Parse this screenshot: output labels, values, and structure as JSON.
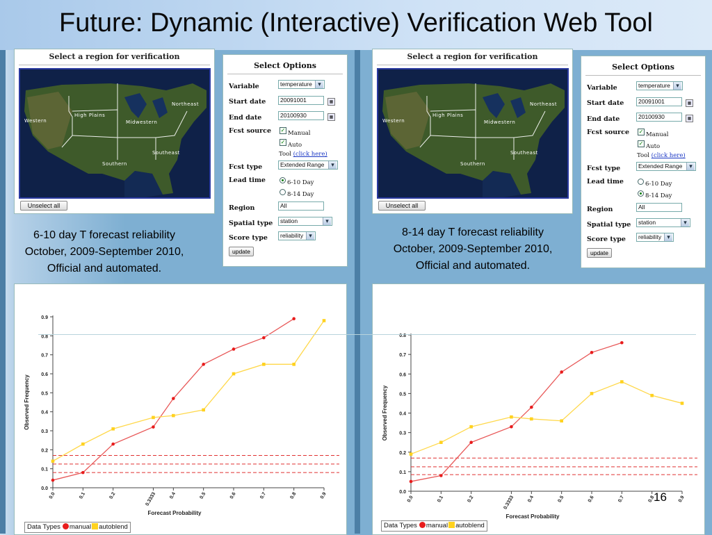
{
  "slide": {
    "title": "Future: Dynamic (Interactive) Verification Web Tool",
    "page_number": "16"
  },
  "panels": [
    {
      "map": {
        "title": "Select a region for verification",
        "regions": [
          "Western",
          "High Plains",
          "Midwestern",
          "Northeast",
          "Southeast",
          "Southern"
        ],
        "unselect_label": "Unselect all"
      },
      "options": {
        "title": "Select Options",
        "variable": {
          "label": "Variable",
          "value": "temperature"
        },
        "start_date": {
          "label": "Start date",
          "value": "20091001"
        },
        "end_date": {
          "label": "End date",
          "value": "20100930"
        },
        "fcst_source": {
          "label": "Fcst source",
          "manual": "Manual",
          "auto": "Auto",
          "tool_prefix": "Tool ",
          "tool_link": "(click here)"
        },
        "fcst_type": {
          "label": "Fcst type",
          "value": "Extended Range"
        },
        "lead_time": {
          "label": "Lead time",
          "option1": "6-10 Day",
          "option2": "8-14 Day",
          "selected": 1
        },
        "region": {
          "label": "Region",
          "value": "All"
        },
        "spatial_type": {
          "label": "Spatial type",
          "value": "station"
        },
        "score_type": {
          "label": "Score type",
          "value": "reliability"
        },
        "update_label": "update"
      },
      "caption": [
        "6-10 day T forecast reliability",
        "October, 2009-September 2010,",
        "Official and automated."
      ],
      "legend": {
        "prefix": "Data Types",
        "manual": "manual",
        "autoblend": "autoblend"
      }
    },
    {
      "map": {
        "title": "Select a region for verification",
        "regions": [
          "Western",
          "High Plains",
          "Midwestern",
          "Northeast",
          "Southeast",
          "Southern"
        ],
        "unselect_label": "Unselect all"
      },
      "options": {
        "title": "Select Options",
        "variable": {
          "label": "Variable",
          "value": "temperature"
        },
        "start_date": {
          "label": "Start date",
          "value": "20091001"
        },
        "end_date": {
          "label": "End date",
          "value": "20100930"
        },
        "fcst_source": {
          "label": "Fcst source",
          "manual": "Manual",
          "auto": "Auto",
          "tool_prefix": "Tool ",
          "tool_link": "(click here)"
        },
        "fcst_type": {
          "label": "Fcst type",
          "value": "Extended Range"
        },
        "lead_time": {
          "label": "Lead time",
          "option1": "6-10 Day",
          "option2": "8-14 Day",
          "selected": 2
        },
        "region": {
          "label": "Region",
          "value": "All"
        },
        "spatial_type": {
          "label": "Spatial type",
          "value": "station"
        },
        "score_type": {
          "label": "Score type",
          "value": "reliability"
        },
        "update_label": "update"
      },
      "caption": [
        "8-14 day T forecast reliability",
        "October, 2009-September 2010,",
        "Official and automated."
      ],
      "legend": {
        "prefix": "Data Types",
        "manual": "manual",
        "autoblend": "autoblend"
      }
    }
  ],
  "colors": {
    "manual": "#e81c1c",
    "autoblend": "#ffd21f",
    "manual_line": "#e85858",
    "autoblend_line": "#ffd84a"
  },
  "chart_data": [
    {
      "type": "line",
      "xlabel": "Forecast Probability",
      "ylabel": "Observed Frequency",
      "x_ticks": [
        "0.0",
        "0.1",
        "0.2",
        "0.3333",
        "0.4",
        "0.5",
        "0.6",
        "0.7",
        "0.8",
        "0.9"
      ],
      "y_ticks": [
        "0.0",
        "0.1",
        "0.2",
        "0.3",
        "0.4",
        "0.5",
        "0.6",
        "0.7",
        "0.8",
        "0.9"
      ],
      "xlim": [
        0,
        0.9
      ],
      "ylim": [
        0,
        0.9
      ],
      "climatology_lines": [
        0.08,
        0.125,
        0.17
      ],
      "series": [
        {
          "name": "manual",
          "x": [
            0.0,
            0.1,
            0.2,
            0.3333,
            0.4,
            0.5,
            0.6,
            0.7,
            0.8
          ],
          "y": [
            0.04,
            0.08,
            0.23,
            0.32,
            0.47,
            0.65,
            0.73,
            0.79,
            0.89
          ]
        },
        {
          "name": "autoblend",
          "x": [
            0.0,
            0.1,
            0.2,
            0.3333,
            0.4,
            0.5,
            0.6,
            0.7,
            0.8,
            0.9
          ],
          "y": [
            0.14,
            0.23,
            0.31,
            0.37,
            0.38,
            0.41,
            0.6,
            0.65,
            0.65,
            0.88
          ]
        }
      ]
    },
    {
      "type": "line",
      "xlabel": "Forecast Probability",
      "ylabel": "Observed Frequency",
      "x_ticks": [
        "0.0",
        "0.1",
        "0.2",
        "0.3333",
        "0.4",
        "0.5",
        "0.6",
        "0.7",
        "0.8",
        "0.9"
      ],
      "y_ticks": [
        "0.0",
        "0.1",
        "0.2",
        "0.3",
        "0.4",
        "0.5",
        "0.6",
        "0.7",
        "0.8"
      ],
      "xlim": [
        0,
        0.9
      ],
      "ylim": [
        0,
        0.8
      ],
      "climatology_lines": [
        0.085,
        0.125,
        0.17
      ],
      "series": [
        {
          "name": "manual",
          "x": [
            0.0,
            0.1,
            0.2,
            0.3333,
            0.4,
            0.5,
            0.6,
            0.7
          ],
          "y": [
            0.05,
            0.08,
            0.25,
            0.33,
            0.43,
            0.61,
            0.71,
            0.76
          ]
        },
        {
          "name": "autoblend",
          "x": [
            0.0,
            0.1,
            0.2,
            0.3333,
            0.4,
            0.5,
            0.6,
            0.7,
            0.8,
            0.9
          ],
          "y": [
            0.19,
            0.25,
            0.33,
            0.38,
            0.37,
            0.36,
            0.5,
            0.56,
            0.49,
            0.45
          ]
        }
      ]
    }
  ]
}
